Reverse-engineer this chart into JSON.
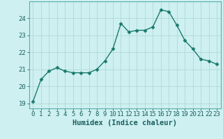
{
  "x": [
    0,
    1,
    2,
    3,
    4,
    5,
    6,
    7,
    8,
    9,
    10,
    11,
    12,
    13,
    14,
    15,
    16,
    17,
    18,
    19,
    20,
    21,
    22,
    23
  ],
  "y": [
    19.1,
    20.4,
    20.9,
    21.1,
    20.9,
    20.8,
    20.8,
    20.8,
    21.0,
    21.5,
    22.2,
    23.7,
    23.2,
    23.3,
    23.3,
    23.5,
    24.5,
    24.4,
    23.6,
    22.7,
    22.2,
    21.6,
    21.5,
    21.3
  ],
  "line_color": "#1a7a6e",
  "marker": "D",
  "markersize": 2.5,
  "linewidth": 1.0,
  "background_color": "#cef0f0",
  "grid_color": "#b0d8d8",
  "xlabel": "Humidex (Indice chaleur)",
  "xlim": [
    -0.5,
    23.5
  ],
  "ylim": [
    18.7,
    25.0
  ],
  "yticks": [
    19,
    20,
    21,
    22,
    23,
    24
  ],
  "xticks": [
    0,
    1,
    2,
    3,
    4,
    5,
    6,
    7,
    8,
    9,
    10,
    11,
    12,
    13,
    14,
    15,
    16,
    17,
    18,
    19,
    20,
    21,
    22,
    23
  ],
  "tick_fontsize": 6.5,
  "xlabel_fontsize": 7.5,
  "tick_color": "#1a5f5f",
  "spine_color": "#5aacac"
}
